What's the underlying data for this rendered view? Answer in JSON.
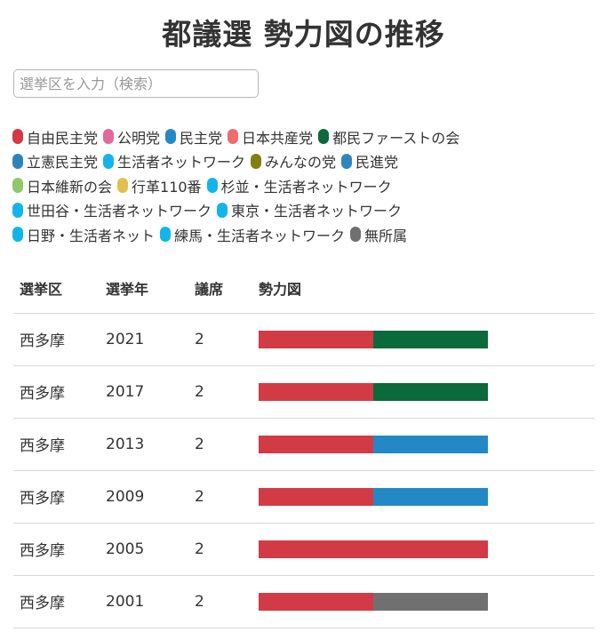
{
  "page": {
    "title": "都議選 勢力図の推移"
  },
  "search": {
    "placeholder": "選挙区を入力（検索）",
    "value": ""
  },
  "legend": [
    [
      {
        "label": "自由民主党",
        "color": "#d23b45"
      },
      {
        "label": "公明党",
        "color": "#e0689b"
      },
      {
        "label": "民主党",
        "color": "#2389c6"
      },
      {
        "label": "日本共産党",
        "color": "#ee6c6c"
      },
      {
        "label": "都民ファーストの会",
        "color": "#0b6a3a"
      }
    ],
    [
      {
        "label": "立憲民主党",
        "color": "#2f83bd"
      },
      {
        "label": "生活者ネットワーク",
        "color": "#12b5ea"
      },
      {
        "label": "みんなの党",
        "color": "#7f7f12"
      },
      {
        "label": "民進党",
        "color": "#2e86c1"
      }
    ],
    [
      {
        "label": "日本維新の会",
        "color": "#8ec86a"
      },
      {
        "label": "行革110番",
        "color": "#e1be52"
      },
      {
        "label": "杉並・生活者ネットワーク",
        "color": "#12b5ea"
      }
    ],
    [
      {
        "label": "世田谷・生活者ネットワーク",
        "color": "#12b5ea"
      },
      {
        "label": "東京・生活者ネットワーク",
        "color": "#12b5ea"
      }
    ],
    [
      {
        "label": "日野・生活者ネット",
        "color": "#12b5ea"
      },
      {
        "label": "練馬・生活者ネットワーク",
        "color": "#12b5ea"
      },
      {
        "label": "無所属",
        "color": "#707070"
      }
    ]
  ],
  "table": {
    "headers": {
      "district": "選挙区",
      "year": "選挙年",
      "seats": "議席",
      "chart": "勢力図"
    },
    "rows": [
      {
        "district": "西多摩",
        "year": "2021",
        "seats": "2",
        "parties": [
          "自由民主党",
          "都民ファーストの会"
        ],
        "colors": [
          "#d23b45",
          "#0b6a3a"
        ]
      },
      {
        "district": "西多摩",
        "year": "2017",
        "seats": "2",
        "parties": [
          "自由民主党",
          "都民ファーストの会"
        ],
        "colors": [
          "#d23b45",
          "#0b6a3a"
        ]
      },
      {
        "district": "西多摩",
        "year": "2013",
        "seats": "2",
        "parties": [
          "自由民主党",
          "民主党"
        ],
        "colors": [
          "#d23b45",
          "#2389c6"
        ]
      },
      {
        "district": "西多摩",
        "year": "2009",
        "seats": "2",
        "parties": [
          "自由民主党",
          "民主党"
        ],
        "colors": [
          "#d23b45",
          "#2389c6"
        ]
      },
      {
        "district": "西多摩",
        "year": "2005",
        "seats": "2",
        "parties": [
          "自由民主党",
          "自由民主党"
        ],
        "colors": [
          "#d23b45",
          "#d23b45"
        ]
      },
      {
        "district": "西多摩",
        "year": "2001",
        "seats": "2",
        "parties": [
          "自由民主党",
          "無所属"
        ],
        "colors": [
          "#d23b45",
          "#707070"
        ]
      }
    ]
  }
}
